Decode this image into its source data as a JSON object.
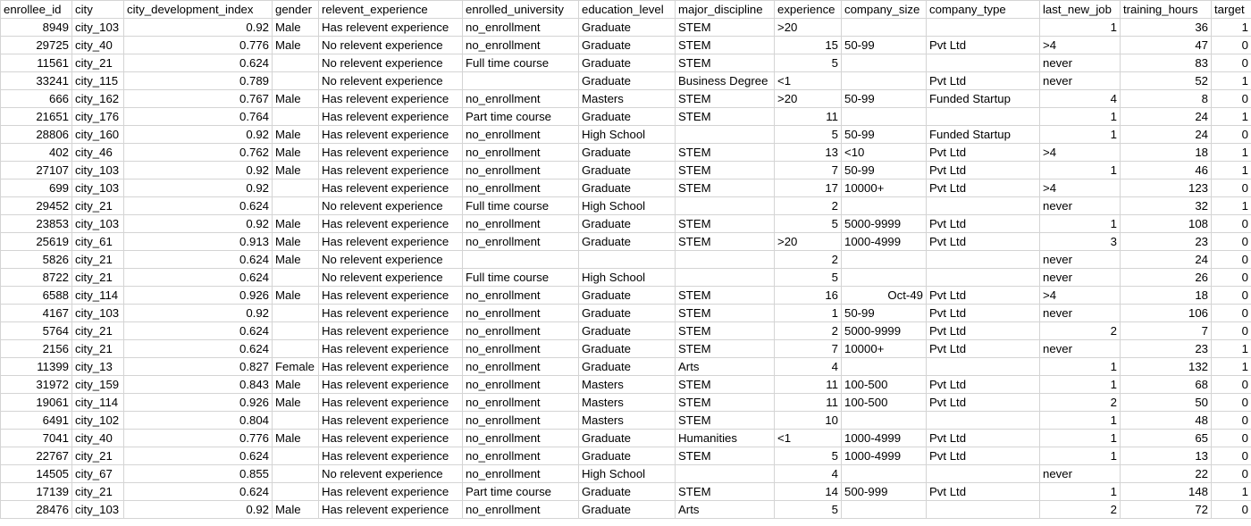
{
  "columns": [
    {
      "key": "enrollee_id",
      "label": "enrollee_id"
    },
    {
      "key": "city",
      "label": "city"
    },
    {
      "key": "city_development_index",
      "label": "city_development_index"
    },
    {
      "key": "gender",
      "label": "gender"
    },
    {
      "key": "relevent_experience",
      "label": "relevent_experience"
    },
    {
      "key": "enrolled_university",
      "label": "enrolled_university"
    },
    {
      "key": "education_level",
      "label": "education_level"
    },
    {
      "key": "major_discipline",
      "label": "major_discipline"
    },
    {
      "key": "experience",
      "label": "experience"
    },
    {
      "key": "company_size",
      "label": "company_size"
    },
    {
      "key": "company_type",
      "label": "company_type"
    },
    {
      "key": "last_new_job",
      "label": "last_new_job"
    },
    {
      "key": "training_hours",
      "label": "training_hours"
    },
    {
      "key": "target",
      "label": "target"
    }
  ],
  "rows": [
    [
      "8949",
      "city_103",
      "0.92",
      "Male",
      "Has relevent experience",
      "no_enrollment",
      "Graduate",
      "STEM",
      ">20",
      "",
      "",
      "1",
      "36",
      "1"
    ],
    [
      "29725",
      "city_40",
      "0.776",
      "Male",
      "No relevent experience",
      "no_enrollment",
      "Graduate",
      "STEM",
      "15",
      "50-99",
      "Pvt Ltd",
      ">4",
      "47",
      "0"
    ],
    [
      "11561",
      "city_21",
      "0.624",
      "",
      "No relevent experience",
      "Full time course",
      "Graduate",
      "STEM",
      "5",
      "",
      "",
      "never",
      "83",
      "0"
    ],
    [
      "33241",
      "city_115",
      "0.789",
      "",
      "No relevent experience",
      "",
      "Graduate",
      "Business Degree",
      "<1",
      "",
      "Pvt Ltd",
      "never",
      "52",
      "1"
    ],
    [
      "666",
      "city_162",
      "0.767",
      "Male",
      "Has relevent experience",
      "no_enrollment",
      "Masters",
      "STEM",
      ">20",
      "50-99",
      "Funded Startup",
      "4",
      "8",
      "0"
    ],
    [
      "21651",
      "city_176",
      "0.764",
      "",
      "Has relevent experience",
      "Part time course",
      "Graduate",
      "STEM",
      "11",
      "",
      "",
      "1",
      "24",
      "1"
    ],
    [
      "28806",
      "city_160",
      "0.92",
      "Male",
      "Has relevent experience",
      "no_enrollment",
      "High School",
      "",
      "5",
      "50-99",
      "Funded Startup",
      "1",
      "24",
      "0"
    ],
    [
      "402",
      "city_46",
      "0.762",
      "Male",
      "Has relevent experience",
      "no_enrollment",
      "Graduate",
      "STEM",
      "13",
      "<10",
      "Pvt Ltd",
      ">4",
      "18",
      "1"
    ],
    [
      "27107",
      "city_103",
      "0.92",
      "Male",
      "Has relevent experience",
      "no_enrollment",
      "Graduate",
      "STEM",
      "7",
      "50-99",
      "Pvt Ltd",
      "1",
      "46",
      "1"
    ],
    [
      "699",
      "city_103",
      "0.92",
      "",
      "Has relevent experience",
      "no_enrollment",
      "Graduate",
      "STEM",
      "17",
      "10000+",
      "Pvt Ltd",
      ">4",
      "123",
      "0"
    ],
    [
      "29452",
      "city_21",
      "0.624",
      "",
      "No relevent experience",
      "Full time course",
      "High School",
      "",
      "2",
      "",
      "",
      "never",
      "32",
      "1"
    ],
    [
      "23853",
      "city_103",
      "0.92",
      "Male",
      "Has relevent experience",
      "no_enrollment",
      "Graduate",
      "STEM",
      "5",
      "5000-9999",
      "Pvt Ltd",
      "1",
      "108",
      "0"
    ],
    [
      "25619",
      "city_61",
      "0.913",
      "Male",
      "Has relevent experience",
      "no_enrollment",
      "Graduate",
      "STEM",
      ">20",
      "1000-4999",
      "Pvt Ltd",
      "3",
      "23",
      "0"
    ],
    [
      "5826",
      "city_21",
      "0.624",
      "Male",
      "No relevent experience",
      "",
      "",
      "",
      "2",
      "",
      "",
      "never",
      "24",
      "0"
    ],
    [
      "8722",
      "city_21",
      "0.624",
      "",
      "No relevent experience",
      "Full time course",
      "High School",
      "",
      "5",
      "",
      "",
      "never",
      "26",
      "0"
    ],
    [
      "6588",
      "city_114",
      "0.926",
      "Male",
      "Has relevent experience",
      "no_enrollment",
      "Graduate",
      "STEM",
      "16",
      "Oct-49",
      "Pvt Ltd",
      ">4",
      "18",
      "0"
    ],
    [
      "4167",
      "city_103",
      "0.92",
      "",
      "Has relevent experience",
      "no_enrollment",
      "Graduate",
      "STEM",
      "1",
      "50-99",
      "Pvt Ltd",
      "never",
      "106",
      "0"
    ],
    [
      "5764",
      "city_21",
      "0.624",
      "",
      "Has relevent experience",
      "no_enrollment",
      "Graduate",
      "STEM",
      "2",
      "5000-9999",
      "Pvt Ltd",
      "2",
      "7",
      "0"
    ],
    [
      "2156",
      "city_21",
      "0.624",
      "",
      "Has relevent experience",
      "no_enrollment",
      "Graduate",
      "STEM",
      "7",
      "10000+",
      "Pvt Ltd",
      "never",
      "23",
      "1"
    ],
    [
      "11399",
      "city_13",
      "0.827",
      "Female",
      "Has relevent experience",
      "no_enrollment",
      "Graduate",
      "Arts",
      "4",
      "",
      "",
      "1",
      "132",
      "1"
    ],
    [
      "31972",
      "city_159",
      "0.843",
      "Male",
      "Has relevent experience",
      "no_enrollment",
      "Masters",
      "STEM",
      "11",
      "100-500",
      "Pvt Ltd",
      "1",
      "68",
      "0"
    ],
    [
      "19061",
      "city_114",
      "0.926",
      "Male",
      "Has relevent experience",
      "no_enrollment",
      "Masters",
      "STEM",
      "11",
      "100-500",
      "Pvt Ltd",
      "2",
      "50",
      "0"
    ],
    [
      "6491",
      "city_102",
      "0.804",
      "",
      "Has relevent experience",
      "no_enrollment",
      "Masters",
      "STEM",
      "10",
      "",
      "",
      "1",
      "48",
      "0"
    ],
    [
      "7041",
      "city_40",
      "0.776",
      "Male",
      "Has relevent experience",
      "no_enrollment",
      "Graduate",
      "Humanities",
      "<1",
      "1000-4999",
      "Pvt Ltd",
      "1",
      "65",
      "0"
    ],
    [
      "22767",
      "city_21",
      "0.624",
      "",
      "Has relevent experience",
      "no_enrollment",
      "Graduate",
      "STEM",
      "5",
      "1000-4999",
      "Pvt Ltd",
      "1",
      "13",
      "0"
    ],
    [
      "14505",
      "city_67",
      "0.855",
      "",
      "No relevent experience",
      "no_enrollment",
      "High School",
      "",
      "4",
      "",
      "",
      "never",
      "22",
      "0"
    ],
    [
      "17139",
      "city_21",
      "0.624",
      "",
      "Has relevent experience",
      "Part time course",
      "Graduate",
      "STEM",
      "14",
      "500-999",
      "Pvt Ltd",
      "1",
      "148",
      "1"
    ],
    [
      "28476",
      "city_103",
      "0.92",
      "Male",
      "Has relevent experience",
      "no_enrollment",
      "Graduate",
      "Arts",
      "5",
      "",
      "",
      "2",
      "72",
      "0"
    ]
  ]
}
